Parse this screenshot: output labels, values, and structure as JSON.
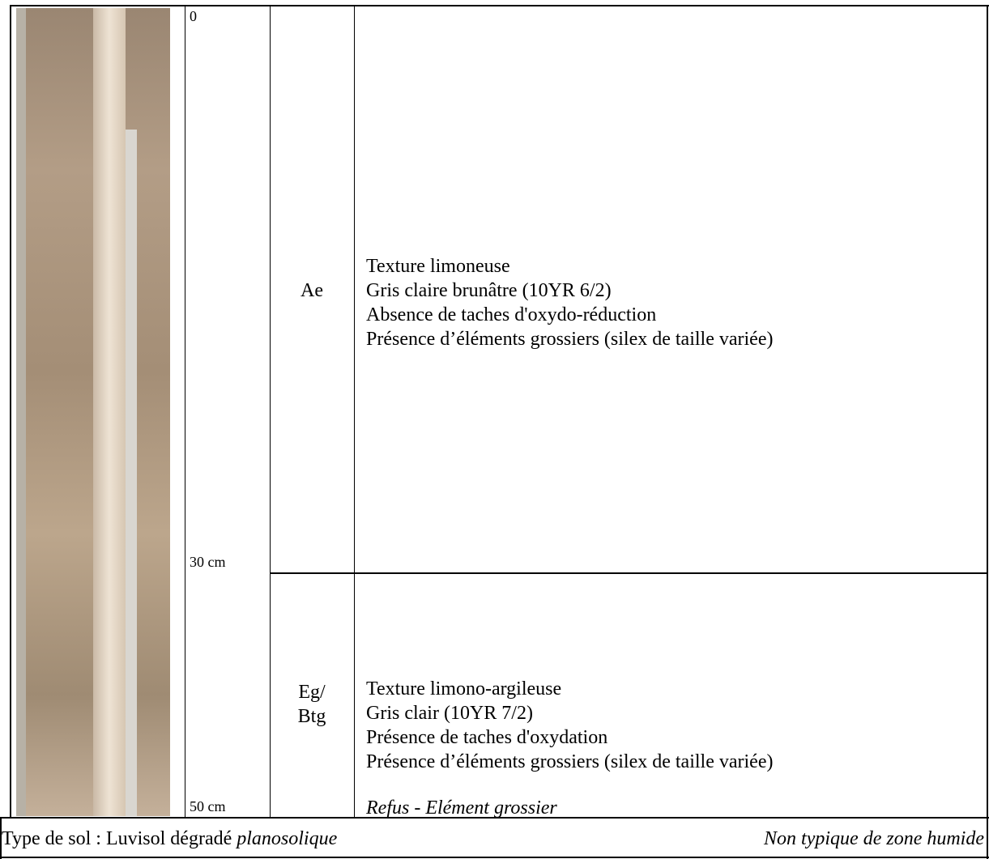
{
  "profile": {
    "depths": [
      "0",
      "30 cm",
      "50 cm"
    ],
    "horizons": [
      {
        "name": [
          "Ae"
        ],
        "lines": [
          "Texture limoneuse",
          "Gris claire brunâtre (10YR 6/2)",
          "Absence de taches d'oxydo-réduction",
          "Présence d’éléments grossiers (silex de taille variée)"
        ]
      },
      {
        "name": [
          "Eg/",
          "Btg"
        ],
        "lines": [
          "Texture limono-argileuse",
          "Gris clair (10YR 7/2)",
          "Présence de taches d'oxydation",
          "Présence d’éléments grossiers (silex de taille variée)"
        ],
        "note": "Refus - Elément grossier"
      }
    ]
  },
  "footer": {
    "soil_type_label": "Type de sol : Luvisol dégradé",
    "soil_type_qualifier": "planosolique",
    "status": "Non typique de zone humide"
  }
}
